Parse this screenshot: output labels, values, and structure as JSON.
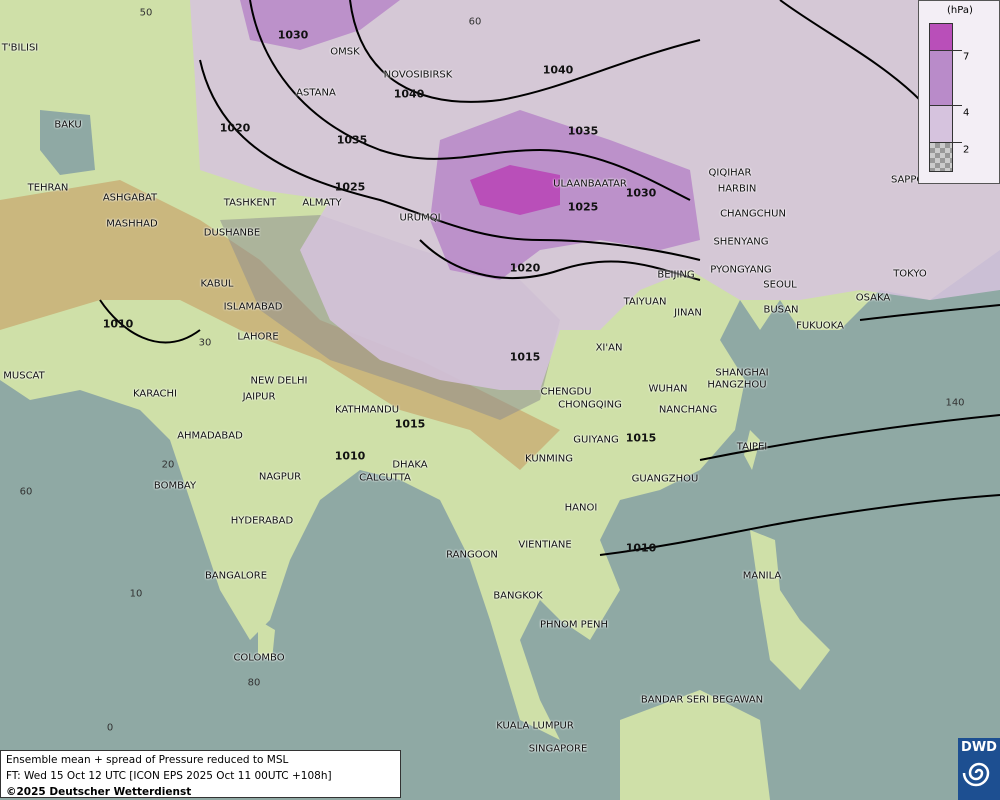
{
  "title": "Ensemble mean + spread of Pressure reduced to MSL",
  "forecast_time": "FT: Wed 15 Oct 12 UTC [ICON EPS 2025 Oct 11 00UTC +108h]",
  "copyright": "©2025 Deutscher Wetterdienst",
  "logo": {
    "text": "DWD",
    "icon": "swirl-icon"
  },
  "legend": {
    "unit": "(hPa)",
    "levels": [
      "7",
      "4",
      "2"
    ],
    "colors": {
      "above_7": "#b94fb9",
      "4_to_7": "#b98bc9",
      "2_to_4": "#d6c3de",
      "below_2": "checkered-grey"
    }
  },
  "colors": {
    "sea": "#8fa9a4",
    "land_low": "#cfe3b0",
    "land_high": "#c9b27a",
    "coast": "#e07a10",
    "isobar": "#000000"
  },
  "cities": [
    "OMSK",
    "NOVOSIBIRSK",
    "ASTANA",
    "T'BILISI",
    "BAKU",
    "TEHRAN",
    "ASHGABAT",
    "MASHHAD",
    "TASHKENT",
    "ALMATY",
    "DUSHANBE",
    "URUMQI",
    "ULAANBAATAR",
    "QIQIHAR",
    "HARBIN",
    "CHANGCHUN",
    "SHENYANG",
    "SAPPORO",
    "BEIJING",
    "PYONGYANG",
    "SEOUL",
    "TOKYO",
    "OSAKA",
    "BUSAN",
    "FUKUOKA",
    "KABUL",
    "ISLAMABAD",
    "LAHORE",
    "TAIYUAN",
    "JINAN",
    "XI'AN",
    "MUSCAT",
    "NEW DELHI",
    "KARACHI",
    "JAIPUR",
    "CHENGDU",
    "CHONGQING",
    "WUHAN",
    "SHANGHAI",
    "HANGZHOU",
    "NANCHANG",
    "KATHMANDU",
    "AHMADABAD",
    "GUIYANG",
    "TAIPEI",
    "KUNMING",
    "DHAKA",
    "CALCUTTA",
    "NAGPUR",
    "BOMBAY",
    "GUANGZHOU",
    "HANOI",
    "HYDERABAD",
    "RANGOON",
    "VIENTIANE",
    "MANILA",
    "BANGALORE",
    "BANGKOK",
    "PHNOM PENH",
    "COLOMBO",
    "BANDAR SERI BEGAWAN",
    "KUALA LUMPUR",
    "SINGAPORE"
  ],
  "isobar_labels": [
    "1030",
    "1040",
    "1040",
    "1020",
    "1035",
    "1035",
    "1025",
    "1030",
    "1025",
    "1020",
    "1010",
    "1015",
    "1015",
    "1010",
    "1015",
    "1010"
  ],
  "grid_labels": [
    "50",
    "60",
    "140",
    "30",
    "20",
    "60",
    "10",
    "80",
    "0"
  ]
}
